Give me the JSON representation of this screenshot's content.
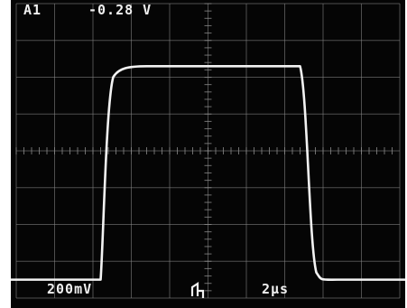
{
  "readout": {
    "channel": "A1",
    "channel_value": "-0.28 V",
    "volts_per_div": "200mV",
    "time_per_div": "2µs",
    "trigger_icon": "trigger-slope-icon"
  },
  "colors": {
    "screen_background": "#050505",
    "trace": "#f2f2f2",
    "graticule": "#8a8a8a",
    "text": "#f0f0f0"
  },
  "graticule": {
    "horizontal_divisions": 10,
    "vertical_divisions": 8,
    "minor_ticks_per_division": 5
  },
  "waveform": {
    "type": "pulse",
    "baseline_division": 7.5,
    "high_division": 1.7,
    "rise_start_division": 2.2,
    "rise_end_division": 2.7,
    "fall_start_division": 7.4,
    "fall_end_division": 7.9
  }
}
